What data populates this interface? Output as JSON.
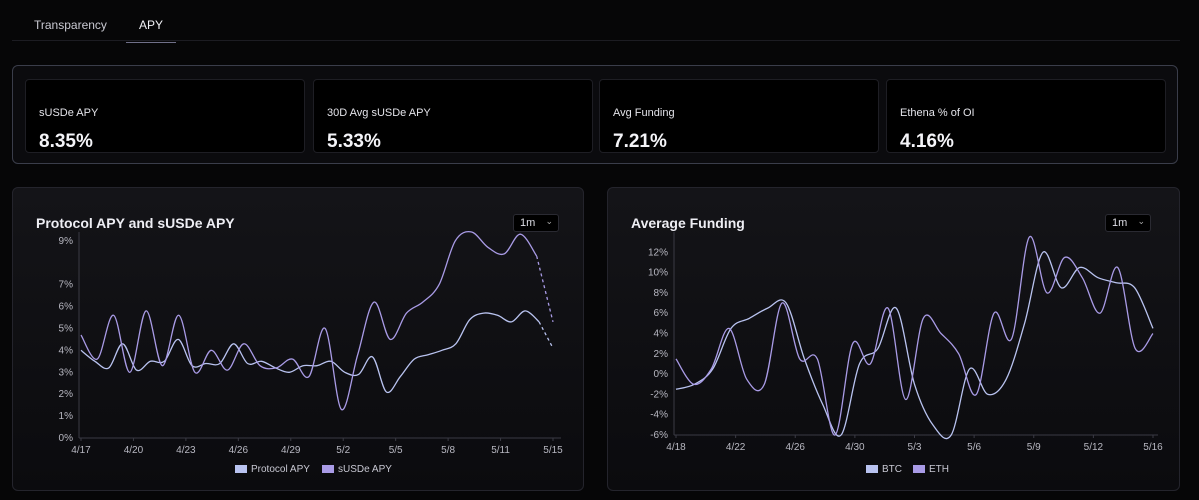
{
  "tabs": [
    {
      "label": "Transparency"
    },
    {
      "label": "APY"
    }
  ],
  "stats": [
    {
      "label": "sUSDe APY",
      "value": "8.35%"
    },
    {
      "label": "30D Avg sUSDe APY",
      "value": "5.33%"
    },
    {
      "label": "Avg Funding",
      "value": "7.21%"
    },
    {
      "label": "Ethena % of OI",
      "value": "4.16%"
    }
  ],
  "panels": [
    {
      "title": "Protocol APY and sUSDe APY",
      "range": "1m"
    },
    {
      "title": "Average Funding",
      "range": "1m"
    }
  ],
  "colors": {
    "series_a": "#b9c3f0",
    "series_b": "#a99be6"
  },
  "chart_data": [
    {
      "type": "line",
      "title": "Protocol APY and sUSDe APY",
      "xlabel": "",
      "ylabel": "",
      "x_ticks": [
        "4/17",
        "4/20",
        "4/23",
        "4/26",
        "4/29",
        "5/2",
        "5/5",
        "5/8",
        "5/11",
        "5/15"
      ],
      "y_ticks": [
        "0%",
        "1%",
        "2%",
        "3%",
        "4%",
        "5%",
        "6%",
        "7%",
        "9%"
      ],
      "ylim": [
        0,
        9.4
      ],
      "legend_position": "bottom",
      "series": [
        {
          "name": "Protocol APY",
          "values": [
            4.0,
            3.5,
            3.2,
            4.3,
            3.1,
            3.5,
            3.5,
            4.5,
            3.3,
            3.4,
            3.4,
            4.3,
            3.4,
            3.5,
            3.2,
            3.0,
            3.3,
            3.3,
            3.5,
            3.0,
            2.9,
            3.7,
            2.1,
            2.8,
            3.6,
            3.8,
            4.0,
            4.3,
            5.4,
            5.7,
            5.6,
            5.3,
            5.8,
            5.3,
            4.1
          ],
          "dashed_from": 33
        },
        {
          "name": "sUSDe APY",
          "values": [
            4.7,
            3.6,
            5.6,
            3.0,
            5.8,
            3.3,
            5.6,
            3.0,
            4.0,
            3.1,
            4.3,
            3.3,
            3.2,
            3.6,
            2.8,
            5.0,
            1.3,
            3.8,
            6.2,
            4.5,
            5.7,
            6.2,
            7.0,
            9.0,
            9.4,
            8.7,
            8.4,
            9.3,
            8.3,
            5.3
          ],
          "dashed_from": 28
        }
      ]
    },
    {
      "type": "line",
      "title": "Average Funding",
      "xlabel": "",
      "ylabel": "",
      "x_ticks": [
        "4/18",
        "4/22",
        "4/26",
        "4/30",
        "5/3",
        "5/6",
        "5/9",
        "5/12",
        "5/16"
      ],
      "y_ticks": [
        "-6%",
        "-4%",
        "-2%",
        "0%",
        "2%",
        "4%",
        "6%",
        "8%",
        "10%",
        "12%"
      ],
      "ylim": [
        -6,
        14
      ],
      "legend_position": "bottom",
      "series": [
        {
          "name": "BTC",
          "values": [
            -1.5,
            -1,
            0.5,
            4.5,
            5.5,
            6.5,
            7.0,
            1.5,
            -3.0,
            -6.0,
            1.0,
            2.5,
            6.5,
            -1.0,
            -5.0,
            -6.0,
            0.5,
            -2.0,
            -0.5,
            5.0,
            12.0,
            8.5,
            10.5,
            9.5,
            9.0,
            8.5,
            4.5
          ]
        },
        {
          "name": "ETH",
          "values": [
            1.5,
            -1.0,
            0.5,
            4.5,
            -0.5,
            -1.0,
            7.0,
            1.5,
            1.5,
            -6.0,
            3.0,
            1.0,
            6.5,
            -2.5,
            5.5,
            4.0,
            2.0,
            -2.0,
            6.0,
            3.5,
            13.5,
            8.0,
            11.5,
            9.5,
            6.0,
            10.5,
            2.5,
            4.0
          ]
        }
      ]
    }
  ]
}
